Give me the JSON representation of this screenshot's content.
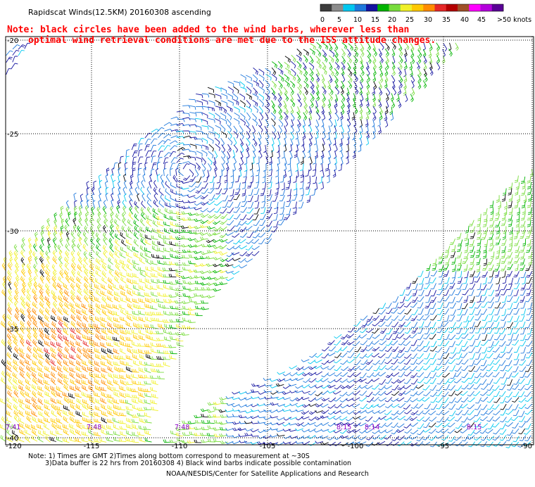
{
  "title": "Rapidscat Winds(12.5KM) 20160308 ascending",
  "note_line1": "Note: black circles have been added to the wind barbs, wherever less than",
  "note_line2": "optimal wind retrieval conditions are met due to the ISS attitude changes.",
  "colorbar": {
    "labels": [
      "0",
      "5",
      "10",
      "15",
      "20",
      "25",
      "30",
      "35",
      "40",
      "45",
      ">50 knots"
    ],
    "colors": [
      "#3c3c3c",
      "#8c8c8c",
      "#00c8f0",
      "#1e78dc",
      "#1414a0",
      "#00b400",
      "#78dc3c",
      "#f0f028",
      "#ffc800",
      "#ff8c00",
      "#e62828",
      "#b40000",
      "#a05028",
      "#ff00ff",
      "#b400dc",
      "#5a0096"
    ]
  },
  "axes": {
    "lat_labels": [
      "-20",
      "-25",
      "-30",
      "-35",
      "-40"
    ],
    "lon_labels": [
      "-120",
      "-115",
      "-110",
      "-105",
      "-100",
      "-95",
      "-90"
    ]
  },
  "time_labels": [
    {
      "text": "7:41",
      "lon": -120.0
    },
    {
      "text": "7:48",
      "lon": -115.4
    },
    {
      "text": "7:48",
      "lon": -110.4
    },
    {
      "text": "8:15",
      "lon": -101.2
    },
    {
      "text": "8:14",
      "lon": -99.6
    },
    {
      "text": "8:15",
      "lon": -93.8
    }
  ],
  "footer_line1": "Note: 1) Times are GMT 2)Times along bottom correspond to measurement at ~30S",
  "footer_line2": "3)Data buffer is 22 hrs from 20160308 4) Black wind barbs indicate possible contamination",
  "footer_line3": "NOAA/NESDIS/Center for Satellite Applications and Research"
}
